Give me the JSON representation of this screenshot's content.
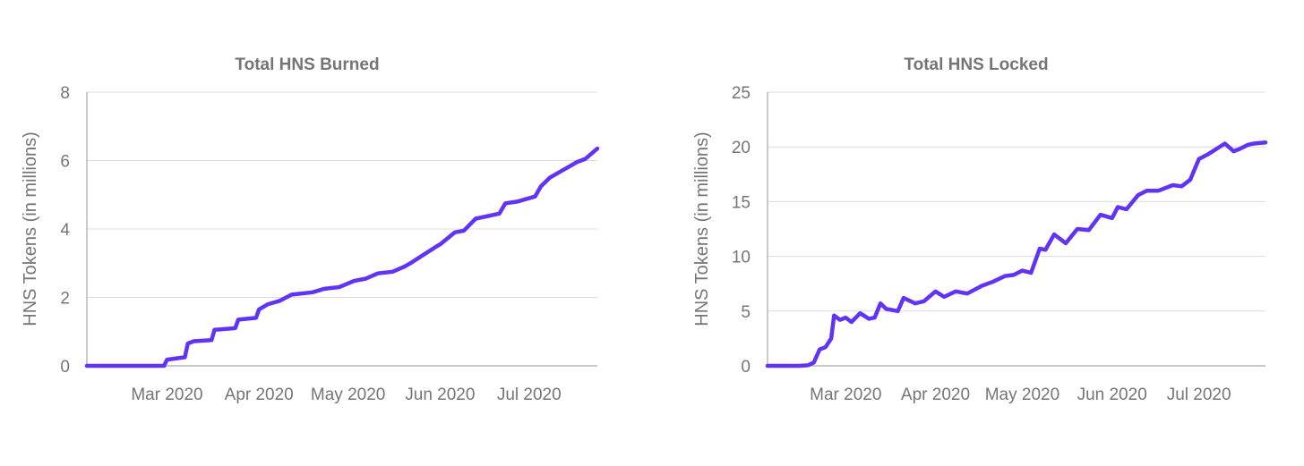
{
  "colors": {
    "line": "#6134F5",
    "text": "#757575",
    "grid": "#dcdcdc"
  },
  "chart_data": [
    {
      "type": "line",
      "title": "Total HNS Burned",
      "xlabel": "",
      "ylabel": "HNS Tokens (in millions)",
      "ylim": [
        0,
        8
      ],
      "yticks": [
        "0",
        "2",
        "4",
        "6",
        "8"
      ],
      "grid": true,
      "legend": "none",
      "x_tick_labels": [
        {
          "date": "2020-03-01",
          "label": "Mar 2020"
        },
        {
          "date": "2020-04-01",
          "label": "Apr 2020"
        },
        {
          "date": "2020-05-01",
          "label": "May 2020"
        },
        {
          "date": "2020-06-01",
          "label": "Jun 2020"
        },
        {
          "date": "2020-07-01",
          "label": "Jul 2020"
        }
      ],
      "xlim": [
        "2020-02-03",
        "2020-07-24"
      ],
      "series": [
        {
          "x": [
            "2020-02-03",
            "2020-02-10",
            "2020-02-20",
            "2020-02-29",
            "2020-03-01",
            "2020-03-07",
            "2020-03-08",
            "2020-03-10",
            "2020-03-16",
            "2020-03-17",
            "2020-03-24",
            "2020-03-25",
            "2020-03-31",
            "2020-04-01",
            "2020-04-04",
            "2020-04-08",
            "2020-04-12",
            "2020-04-19",
            "2020-04-23",
            "2020-04-28",
            "2020-05-03",
            "2020-05-07",
            "2020-05-11",
            "2020-05-16",
            "2020-05-20",
            "2020-05-22",
            "2020-05-31",
            "2020-06-01",
            "2020-06-06",
            "2020-06-09",
            "2020-06-13",
            "2020-06-21",
            "2020-06-23",
            "2020-06-27",
            "2020-07-03",
            "2020-07-05",
            "2020-07-08",
            "2020-07-13",
            "2020-07-17",
            "2020-07-20",
            "2020-07-24"
          ],
          "y": [
            0,
            0,
            0,
            0,
            0.18,
            0.25,
            0.65,
            0.72,
            0.75,
            1.05,
            1.1,
            1.35,
            1.4,
            1.65,
            1.8,
            1.9,
            2.08,
            2.15,
            2.25,
            2.3,
            2.48,
            2.55,
            2.7,
            2.75,
            2.9,
            3.0,
            3.5,
            3.55,
            3.9,
            3.95,
            4.3,
            4.45,
            4.75,
            4.8,
            4.95,
            5.25,
            5.5,
            5.75,
            5.95,
            6.05,
            6.35
          ]
        }
      ]
    },
    {
      "type": "line",
      "title": "Total HNS Locked",
      "xlabel": "",
      "ylabel": "HNS Tokens (in millions)",
      "ylim": [
        0,
        25
      ],
      "yticks": [
        "0",
        "5",
        "10",
        "15",
        "20",
        "25"
      ],
      "grid": true,
      "legend": "none",
      "x_tick_labels": [
        {
          "date": "2020-03-01",
          "label": "Mar 2020"
        },
        {
          "date": "2020-04-01",
          "label": "Apr 2020"
        },
        {
          "date": "2020-05-01",
          "label": "May 2020"
        },
        {
          "date": "2020-06-01",
          "label": "Jun 2020"
        },
        {
          "date": "2020-07-01",
          "label": "Jul 2020"
        }
      ],
      "xlim": [
        "2020-02-03",
        "2020-07-24"
      ],
      "series": [
        {
          "x": [
            "2020-02-03",
            "2020-02-10",
            "2020-02-14",
            "2020-02-17",
            "2020-02-19",
            "2020-02-21",
            "2020-02-23",
            "2020-02-25",
            "2020-02-26",
            "2020-02-28",
            "2020-03-01",
            "2020-03-03",
            "2020-03-06",
            "2020-03-09",
            "2020-03-11",
            "2020-03-13",
            "2020-03-15",
            "2020-03-19",
            "2020-03-21",
            "2020-03-25",
            "2020-03-28",
            "2020-04-01",
            "2020-04-04",
            "2020-04-08",
            "2020-04-12",
            "2020-04-17",
            "2020-04-21",
            "2020-04-25",
            "2020-04-28",
            "2020-05-01",
            "2020-05-04",
            "2020-05-07",
            "2020-05-09",
            "2020-05-12",
            "2020-05-16",
            "2020-05-20",
            "2020-05-24",
            "2020-05-28",
            "2020-06-01",
            "2020-06-03",
            "2020-06-06",
            "2020-06-10",
            "2020-06-13",
            "2020-06-17",
            "2020-06-22",
            "2020-06-25",
            "2020-06-28",
            "2020-07-01",
            "2020-07-04",
            "2020-07-07",
            "2020-07-10",
            "2020-07-13",
            "2020-07-15",
            "2020-07-18",
            "2020-07-20",
            "2020-07-24"
          ],
          "y": [
            0,
            0,
            0,
            0.05,
            0.3,
            1.5,
            1.7,
            2.5,
            4.6,
            4.2,
            4.4,
            4.0,
            4.8,
            4.3,
            4.4,
            5.7,
            5.2,
            5.0,
            6.2,
            5.7,
            5.9,
            6.8,
            6.3,
            6.8,
            6.6,
            7.3,
            7.7,
            8.2,
            8.3,
            8.7,
            8.5,
            10.7,
            10.6,
            12.0,
            11.2,
            12.5,
            12.4,
            13.8,
            13.5,
            14.5,
            14.3,
            15.6,
            16.0,
            16.0,
            16.5,
            16.4,
            17.0,
            18.9,
            19.3,
            19.8,
            20.3,
            19.6,
            19.8,
            20.2,
            20.3,
            20.4
          ]
        }
      ]
    }
  ]
}
